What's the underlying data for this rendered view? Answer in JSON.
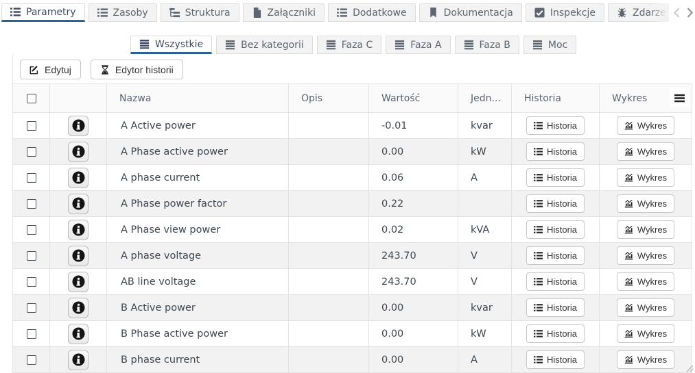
{
  "main_tabs": [
    {
      "label": "Parametry",
      "icon": "list-icon",
      "active": true
    },
    {
      "label": "Zasoby",
      "icon": "list-icon",
      "active": false
    },
    {
      "label": "Struktura",
      "icon": "tree-icon",
      "active": false
    },
    {
      "label": "Załączniki",
      "icon": "file-icon",
      "active": false
    },
    {
      "label": "Dodatkowe",
      "icon": "list-icon",
      "active": false
    },
    {
      "label": "Dokumentacja",
      "icon": "bookmark-icon",
      "active": false
    },
    {
      "label": "Inspekcje",
      "icon": "check-square-icon",
      "active": false
    },
    {
      "label": "Zdarze",
      "icon": "bug-icon",
      "active": false,
      "truncated": true
    }
  ],
  "tab_scroller": {
    "left_icon": "chevron-left-icon",
    "right_icon": "chevron-right-icon"
  },
  "sub_tabs": [
    {
      "label": "Wszystkie",
      "icon": "table-icon",
      "active": true
    },
    {
      "label": "Bez kategorii",
      "icon": "table-icon",
      "active": false
    },
    {
      "label": "Faza C",
      "icon": "table-icon",
      "active": false
    },
    {
      "label": "Faza A",
      "icon": "table-icon",
      "active": false
    },
    {
      "label": "Faza B",
      "icon": "table-icon",
      "active": false
    },
    {
      "label": "Moc",
      "icon": "table-icon",
      "active": false
    }
  ],
  "toolbar": {
    "edit": {
      "label": "Edytuj",
      "icon": "pencil-square-icon"
    },
    "history_editor": {
      "label": "Edytor historii",
      "icon": "hourglass-icon"
    }
  },
  "table": {
    "columns": {
      "name": "Nazwa",
      "description": "Opis",
      "value": "Wartość",
      "unit": "Jedn...",
      "history": "Historia",
      "chart": "Wykres"
    },
    "menu_icon": "menu-icon",
    "row_actions": {
      "info_icon": "info-icon",
      "history": {
        "label": "Historia",
        "icon": "list-icon"
      },
      "chart": {
        "label": "Wykres",
        "icon": "chart-icon"
      }
    },
    "rows": [
      {
        "name": "A Active power",
        "description": "",
        "value": "-0.01",
        "unit": "kvar"
      },
      {
        "name": "A Phase active power",
        "description": "",
        "value": "0.00",
        "unit": "kW"
      },
      {
        "name": "A phase current",
        "description": "",
        "value": "0.06",
        "unit": "A"
      },
      {
        "name": "A Phase power factor",
        "description": "",
        "value": "0.22",
        "unit": ""
      },
      {
        "name": "A Phase view power",
        "description": "",
        "value": "0.02",
        "unit": "kVA"
      },
      {
        "name": "A phase voltage",
        "description": "",
        "value": "243.70",
        "unit": "V"
      },
      {
        "name": "AB line voltage",
        "description": "",
        "value": "243.70",
        "unit": "V"
      },
      {
        "name": "B Active power",
        "description": "",
        "value": "0.00",
        "unit": "kvar"
      },
      {
        "name": "B Phase active power",
        "description": "",
        "value": "0.00",
        "unit": "kW"
      },
      {
        "name": "B phase current",
        "description": "",
        "value": "0.00",
        "unit": "A",
        "clipped": true
      }
    ]
  },
  "resize_handle_icon": "resize-handle-icon",
  "colors": {
    "accent_blue": "#2a6496",
    "active_tab_text": "#3e4b66",
    "inactive_tab_text": "#5c6670",
    "inactive_tab_bg": "#f3f3f3",
    "row_alt_bg": "#f2f2f2",
    "border": "#e3e3e3"
  }
}
